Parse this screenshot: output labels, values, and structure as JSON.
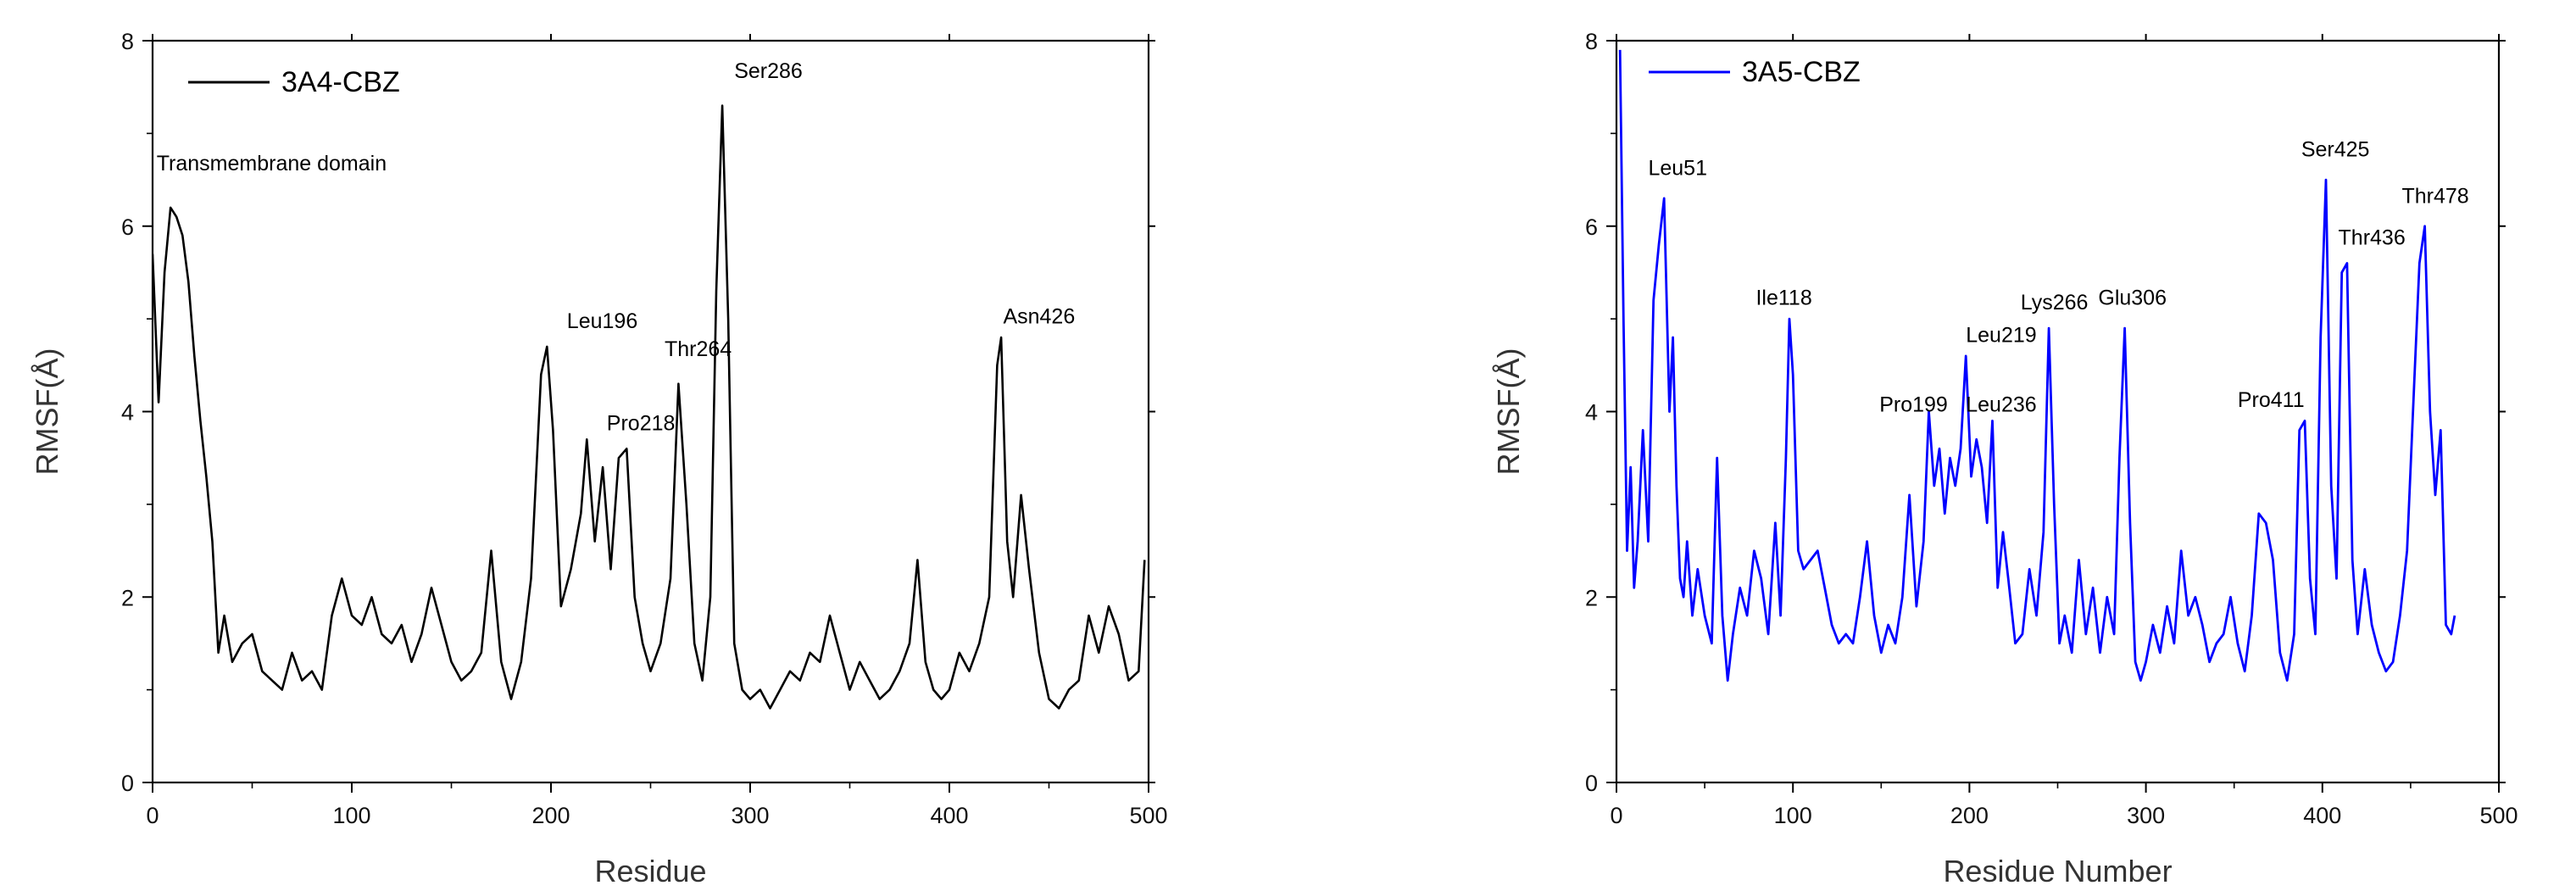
{
  "chart_data": [
    {
      "type": "line",
      "xlabel": "Residue",
      "ylabel": "RMSF(Å)",
      "xlim": [
        0,
        500
      ],
      "ylim": [
        0,
        8
      ],
      "xticks": [
        "0",
        "100",
        "200",
        "300",
        "400",
        "500"
      ],
      "yticks": [
        "0",
        "2",
        "4",
        "6",
        "8"
      ],
      "legend_position": "top-left",
      "series": [
        {
          "name": "3A4-CBZ",
          "color": "#000000",
          "x": [
            0,
            3,
            6,
            9,
            12,
            15,
            18,
            21,
            24,
            27,
            30,
            33,
            36,
            40,
            45,
            50,
            55,
            60,
            65,
            70,
            75,
            80,
            85,
            90,
            95,
            100,
            105,
            110,
            115,
            120,
            125,
            130,
            135,
            140,
            145,
            150,
            155,
            160,
            165,
            170,
            175,
            180,
            185,
            190,
            195,
            198,
            201,
            205,
            210,
            215,
            218,
            222,
            226,
            230,
            234,
            238,
            242,
            246,
            250,
            255,
            260,
            264,
            268,
            272,
            276,
            280,
            283,
            286,
            289,
            292,
            296,
            300,
            305,
            310,
            315,
            320,
            325,
            330,
            335,
            340,
            345,
            350,
            355,
            360,
            365,
            370,
            375,
            380,
            384,
            388,
            392,
            396,
            400,
            405,
            410,
            415,
            420,
            424,
            426,
            429,
            432,
            436,
            440,
            445,
            450,
            455,
            460,
            465,
            470,
            475,
            480,
            485,
            490,
            495,
            498
          ],
          "values": [
            5.7,
            4.1,
            5.5,
            6.2,
            6.1,
            5.9,
            5.4,
            4.6,
            3.9,
            3.3,
            2.6,
            1.4,
            1.8,
            1.3,
            1.5,
            1.6,
            1.2,
            1.1,
            1.0,
            1.4,
            1.1,
            1.2,
            1.0,
            1.8,
            2.2,
            1.8,
            1.7,
            2.0,
            1.6,
            1.5,
            1.7,
            1.3,
            1.6,
            2.1,
            1.7,
            1.3,
            1.1,
            1.2,
            1.4,
            2.5,
            1.3,
            0.9,
            1.3,
            2.2,
            4.4,
            4.7,
            3.8,
            1.9,
            2.3,
            2.9,
            3.7,
            2.6,
            3.4,
            2.3,
            3.5,
            3.6,
            2.0,
            1.5,
            1.2,
            1.5,
            2.2,
            4.3,
            3.0,
            1.5,
            1.1,
            2.0,
            5.3,
            7.3,
            5.0,
            1.5,
            1.0,
            0.9,
            1.0,
            0.8,
            1.0,
            1.2,
            1.1,
            1.4,
            1.3,
            1.8,
            1.4,
            1.0,
            1.3,
            1.1,
            0.9,
            1.0,
            1.2,
            1.5,
            2.4,
            1.3,
            1.0,
            0.9,
            1.0,
            1.4,
            1.2,
            1.5,
            2.0,
            4.5,
            4.8,
            2.6,
            2.0,
            3.1,
            2.3,
            1.4,
            0.9,
            0.8,
            1.0,
            1.1,
            1.8,
            1.4,
            1.9,
            1.6,
            1.1,
            1.2,
            2.4
          ]
        }
      ],
      "annotations": [
        {
          "text": "Transmembrane domain",
          "x": 2,
          "y": 6.6
        },
        {
          "text": "Leu196",
          "x": 208,
          "y": 4.9
        },
        {
          "text": "Pro218",
          "x": 228,
          "y": 3.8
        },
        {
          "text": "Thr264",
          "x": 257,
          "y": 4.6
        },
        {
          "text": "Ser286",
          "x": 292,
          "y": 7.6
        },
        {
          "text": "Asn426",
          "x": 427,
          "y": 4.95
        }
      ]
    },
    {
      "type": "line",
      "xlabel": "Residue Number",
      "ylabel": "RMSF(Å)",
      "xlim": [
        0,
        500
      ],
      "ylim": [
        0,
        8
      ],
      "xticks": [
        "0",
        "100",
        "200",
        "300",
        "400",
        "500"
      ],
      "yticks": [
        "0",
        "2",
        "4",
        "6",
        "8"
      ],
      "legend_position": "top-left",
      "series": [
        {
          "name": "3A5-CBZ",
          "color": "#0000ff",
          "x": [
            2,
            4,
            6,
            8,
            10,
            12,
            15,
            18,
            21,
            24,
            27,
            30,
            32,
            34,
            36,
            38,
            40,
            43,
            46,
            50,
            54,
            57,
            60,
            63,
            66,
            70,
            74,
            78,
            82,
            86,
            90,
            93,
            96,
            98,
            100,
            103,
            106,
            110,
            114,
            118,
            122,
            126,
            130,
            134,
            138,
            142,
            146,
            150,
            154,
            158,
            162,
            166,
            170,
            174,
            177,
            180,
            183,
            186,
            189,
            192,
            195,
            198,
            201,
            204,
            207,
            210,
            213,
            216,
            219,
            222,
            226,
            230,
            234,
            238,
            242,
            245,
            248,
            251,
            254,
            258,
            262,
            266,
            270,
            274,
            278,
            282,
            285,
            288,
            291,
            294,
            297,
            300,
            304,
            308,
            312,
            316,
            320,
            324,
            328,
            332,
            336,
            340,
            344,
            348,
            352,
            356,
            360,
            364,
            368,
            372,
            376,
            380,
            384,
            387,
            390,
            393,
            396,
            399,
            402,
            405,
            408,
            411,
            414,
            417,
            420,
            424,
            428,
            432,
            436,
            440,
            444,
            448,
            452,
            455,
            458,
            461,
            464,
            467,
            470,
            473,
            475
          ],
          "values": [
            7.9,
            5.0,
            2.5,
            3.4,
            2.1,
            2.6,
            3.8,
            2.6,
            5.2,
            5.8,
            6.3,
            4.0,
            4.8,
            3.2,
            2.2,
            2.0,
            2.6,
            1.8,
            2.3,
            1.8,
            1.5,
            3.5,
            1.8,
            1.1,
            1.6,
            2.1,
            1.8,
            2.5,
            2.2,
            1.6,
            2.8,
            1.8,
            3.5,
            5.0,
            4.4,
            2.5,
            2.3,
            2.4,
            2.5,
            2.1,
            1.7,
            1.5,
            1.6,
            1.5,
            2.0,
            2.6,
            1.8,
            1.4,
            1.7,
            1.5,
            2.0,
            3.1,
            1.9,
            2.6,
            4.0,
            3.2,
            3.6,
            2.9,
            3.5,
            3.2,
            3.6,
            4.6,
            3.3,
            3.7,
            3.4,
            2.8,
            3.9,
            2.1,
            2.7,
            2.2,
            1.5,
            1.6,
            2.3,
            1.8,
            2.7,
            4.9,
            3.0,
            1.5,
            1.8,
            1.4,
            2.4,
            1.6,
            2.1,
            1.4,
            2.0,
            1.6,
            3.5,
            4.9,
            2.8,
            1.3,
            1.1,
            1.3,
            1.7,
            1.4,
            1.9,
            1.5,
            2.5,
            1.8,
            2.0,
            1.7,
            1.3,
            1.5,
            1.6,
            2.0,
            1.5,
            1.2,
            1.8,
            2.9,
            2.8,
            2.4,
            1.4,
            1.1,
            1.6,
            3.8,
            3.9,
            2.2,
            1.6,
            4.8,
            6.5,
            3.2,
            2.2,
            5.5,
            5.6,
            2.4,
            1.6,
            2.3,
            1.7,
            1.4,
            1.2,
            1.3,
            1.8,
            2.5,
            4.3,
            5.6,
            6.0,
            4.0,
            3.1,
            3.8,
            1.7,
            1.6,
            1.8
          ]
        }
      ],
      "annotations": [
        {
          "text": "Leu51",
          "x": 18,
          "y": 6.55
        },
        {
          "text": "Ile118",
          "x": 79,
          "y": 5.15
        },
        {
          "text": "Pro199",
          "x": 149,
          "y": 4.0
        },
        {
          "text": "Leu219",
          "x": 198,
          "y": 4.75
        },
        {
          "text": "Leu236",
          "x": 198,
          "y": 4.0
        },
        {
          "text": "Lys266",
          "x": 229,
          "y": 5.1
        },
        {
          "text": "Glu306",
          "x": 273,
          "y": 5.15
        },
        {
          "text": "Pro411",
          "x": 352,
          "y": 4.05
        },
        {
          "text": "Ser425",
          "x": 388,
          "y": 6.75
        },
        {
          "text": "Thr436",
          "x": 409,
          "y": 5.8
        },
        {
          "text": "Thr478",
          "x": 445,
          "y": 6.25
        }
      ]
    }
  ]
}
